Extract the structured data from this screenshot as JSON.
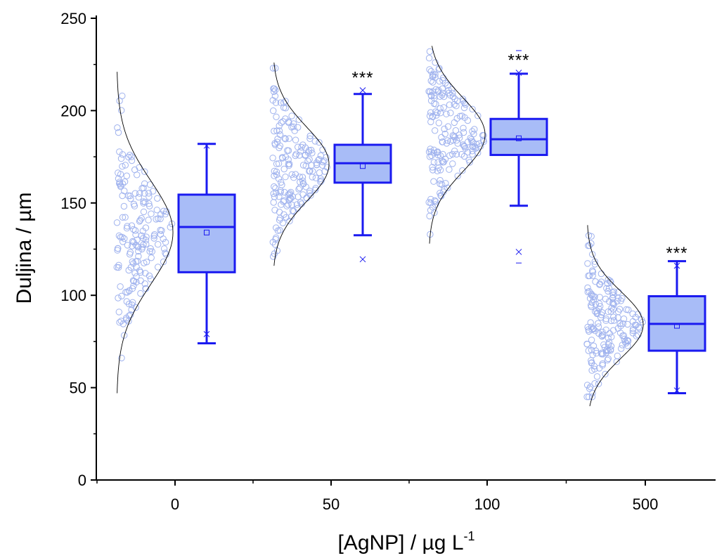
{
  "chart_data": {
    "type": "box",
    "xlabel": "[AgNP] / µg L",
    "xlabel_superscript": "-1",
    "ylabel": "Duljina / µm",
    "ylim": [
      0,
      250
    ],
    "yticks": [
      "0",
      "50",
      "100",
      "150",
      "200",
      "250"
    ],
    "categories": [
      "0",
      "50",
      "100",
      "500"
    ],
    "colors": {
      "box_fill": "#a8bcf7",
      "box_stroke": "#1a1af0",
      "points": "#9fb2ee",
      "curve": "#000000"
    },
    "boxes": [
      {
        "category": "0",
        "whisker_low": 74,
        "q1": 112.5,
        "median": 137,
        "q3": 154.5,
        "whisker_high": 182,
        "mean": 134,
        "min_marker": 79,
        "max_marker": 181,
        "outliers": [],
        "significance": ""
      },
      {
        "category": "50",
        "whisker_low": 132.5,
        "q1": 161,
        "median": 171.5,
        "q3": 181.5,
        "whisker_high": 209,
        "mean": 170,
        "min_marker": 119.5,
        "max_marker": 211,
        "outliers": [],
        "significance": "***"
      },
      {
        "category": "100",
        "whisker_low": 148.5,
        "q1": 176,
        "median": 184.5,
        "q3": 195.5,
        "whisker_high": 220,
        "mean": 185,
        "min_marker": 123.5,
        "max_marker": 220.5,
        "outliers": [
          117.5,
          232.5
        ],
        "significance": "***"
      },
      {
        "category": "500",
        "whisker_low": 47,
        "q1": 70,
        "median": 84.5,
        "q3": 99.5,
        "whisker_high": 118.5,
        "mean": 83.5,
        "min_marker": 48.5,
        "max_marker": 116,
        "outliers": [],
        "significance": "***"
      }
    ],
    "distributions": [
      {
        "category": "0",
        "mean": 134,
        "sd": 28,
        "range": [
          47,
          221
        ],
        "n": 180
      },
      {
        "category": "50",
        "mean": 171,
        "sd": 20,
        "range": [
          116,
          226
        ],
        "n": 180
      },
      {
        "category": "100",
        "mean": 187,
        "sd": 20,
        "range": [
          128,
          235
        ],
        "n": 180
      },
      {
        "category": "500",
        "mean": 84,
        "sd": 18,
        "range": [
          40,
          138
        ],
        "n": 180
      }
    ]
  }
}
